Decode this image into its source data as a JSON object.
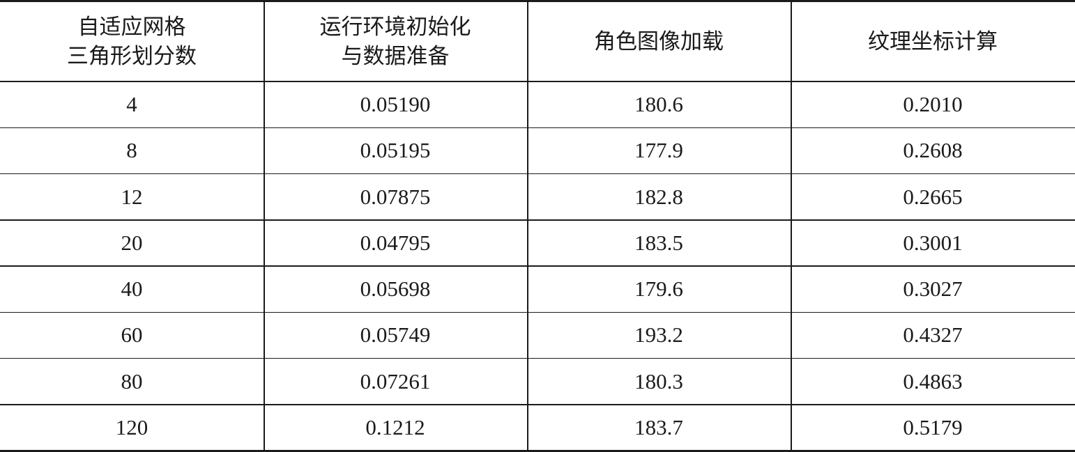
{
  "table": {
    "header": [
      [
        "自适应网格",
        "三角形划分数"
      ],
      [
        "运行环境初始化",
        "与数据准备"
      ],
      [
        "角色图像加载"
      ],
      [
        "纹理坐标计算"
      ]
    ],
    "rows": [
      [
        "4",
        "0.05190",
        "180.6",
        "0.2010"
      ],
      [
        "8",
        "0.05195",
        "177.9",
        "0.2608"
      ],
      [
        "12",
        "0.07875",
        "182.8",
        "0.2665"
      ],
      [
        "20",
        "0.04795",
        "183.5",
        "0.3001"
      ],
      [
        "40",
        "0.05698",
        "179.6",
        "0.3027"
      ],
      [
        "60",
        "0.05749",
        "193.2",
        "0.4327"
      ],
      [
        "80",
        "0.07261",
        "180.3",
        "0.4863"
      ],
      [
        "120",
        "0.1212",
        "183.7",
        "0.5179"
      ]
    ]
  }
}
